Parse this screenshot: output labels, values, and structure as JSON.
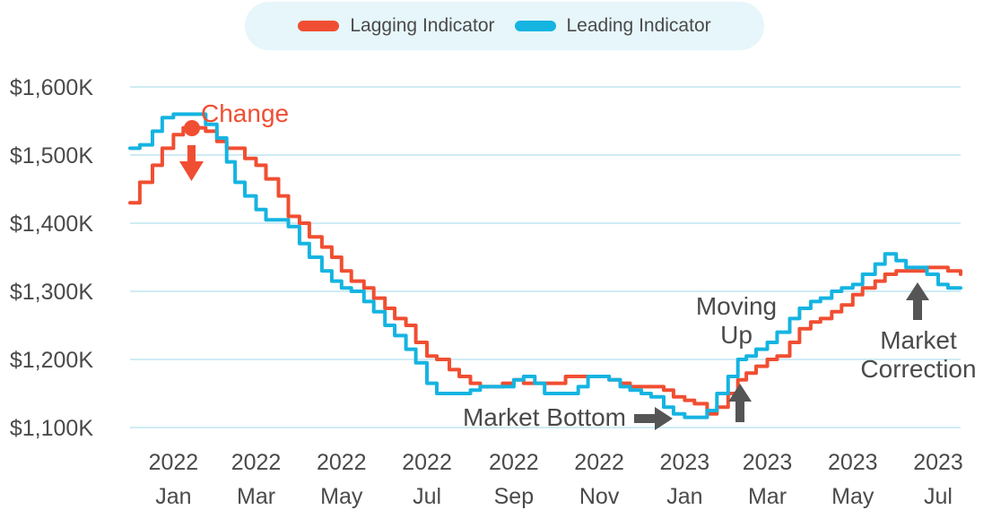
{
  "colors": {
    "lagging": "#F04E32",
    "leading": "#15B4E1",
    "grid": "#BFE6F2",
    "legend_bg": "#E6F6FA",
    "text": "#4A4A4A",
    "arrow_dark": "#555555"
  },
  "legend": {
    "position": "top-center",
    "items": [
      {
        "label": "Lagging Indicator",
        "color": "#F04E32"
      },
      {
        "label": "Leading Indicator",
        "color": "#15B4E1"
      }
    ]
  },
  "annotations": {
    "change": "Change",
    "market_bottom": "Market Bottom",
    "moving_up_1": "Moving",
    "moving_up_2": "Up",
    "market_correction_1": "Market",
    "market_correction_2": "Correction"
  },
  "chart_data": {
    "type": "line",
    "title": "",
    "xlabel": "",
    "ylabel": "",
    "ylim": [
      1100,
      1600
    ],
    "xlim": [
      "2021-12-15",
      "2023-07-31"
    ],
    "grid": true,
    "y_ticks": [
      {
        "value": 1600,
        "label": "$1,600K"
      },
      {
        "value": 1500,
        "label": "$1,500K"
      },
      {
        "value": 1400,
        "label": "$1,400K"
      },
      {
        "value": 1300,
        "label": "$1,300K"
      },
      {
        "value": 1200,
        "label": "$1,200K"
      },
      {
        "value": 1100,
        "label": "$1,100K"
      }
    ],
    "x_ticks": [
      {
        "date": "2022-01-15",
        "year": "2022",
        "month": "Jan"
      },
      {
        "date": "2022-03-15",
        "year": "2022",
        "month": "Mar"
      },
      {
        "date": "2022-05-15",
        "year": "2022",
        "month": "May"
      },
      {
        "date": "2022-07-15",
        "year": "2022",
        "month": "Jul"
      },
      {
        "date": "2022-09-15",
        "year": "2022",
        "month": "Sep"
      },
      {
        "date": "2022-11-15",
        "year": "2022",
        "month": "Nov"
      },
      {
        "date": "2023-01-15",
        "year": "2023",
        "month": "Jan"
      },
      {
        "date": "2023-03-15",
        "year": "2023",
        "month": "Mar"
      },
      {
        "date": "2023-05-15",
        "year": "2023",
        "month": "May"
      },
      {
        "date": "2023-07-15",
        "year": "2023",
        "month": "Jul"
      }
    ],
    "series": [
      {
        "name": "Lagging Indicator",
        "color": "#F04E32",
        "points": [
          [
            "2021-12-15",
            1430
          ],
          [
            "2021-12-22",
            1460
          ],
          [
            "2021-12-31",
            1485
          ],
          [
            "2022-01-07",
            1510
          ],
          [
            "2022-01-15",
            1530
          ],
          [
            "2022-01-22",
            1540
          ],
          [
            "2022-01-31",
            1540
          ],
          [
            "2022-02-07",
            1535
          ],
          [
            "2022-02-15",
            1520
          ],
          [
            "2022-02-22",
            1510
          ],
          [
            "2022-02-28",
            1510
          ],
          [
            "2022-03-07",
            1495
          ],
          [
            "2022-03-15",
            1485
          ],
          [
            "2022-03-22",
            1465
          ],
          [
            "2022-03-31",
            1440
          ],
          [
            "2022-04-07",
            1410
          ],
          [
            "2022-04-15",
            1400
          ],
          [
            "2022-04-22",
            1380
          ],
          [
            "2022-05-01",
            1365
          ],
          [
            "2022-05-08",
            1350
          ],
          [
            "2022-05-15",
            1330
          ],
          [
            "2022-05-22",
            1315
          ],
          [
            "2022-05-31",
            1305
          ],
          [
            "2022-06-07",
            1290
          ],
          [
            "2022-06-15",
            1275
          ],
          [
            "2022-06-22",
            1260
          ],
          [
            "2022-06-30",
            1250
          ],
          [
            "2022-07-07",
            1225
          ],
          [
            "2022-07-15",
            1205
          ],
          [
            "2022-07-22",
            1200
          ],
          [
            "2022-07-31",
            1185
          ],
          [
            "2022-08-07",
            1175
          ],
          [
            "2022-08-15",
            1165
          ],
          [
            "2022-08-22",
            1160
          ],
          [
            "2022-08-31",
            1160
          ],
          [
            "2022-09-07",
            1165
          ],
          [
            "2022-09-15",
            1170
          ],
          [
            "2022-09-22",
            1165
          ],
          [
            "2022-09-30",
            1165
          ],
          [
            "2022-10-07",
            1165
          ],
          [
            "2022-10-15",
            1165
          ],
          [
            "2022-10-22",
            1175
          ],
          [
            "2022-10-31",
            1175
          ],
          [
            "2022-11-07",
            1175
          ],
          [
            "2022-11-15",
            1175
          ],
          [
            "2022-11-22",
            1170
          ],
          [
            "2022-11-30",
            1165
          ],
          [
            "2022-12-07",
            1160
          ],
          [
            "2022-12-15",
            1160
          ],
          [
            "2022-12-22",
            1160
          ],
          [
            "2022-12-31",
            1155
          ],
          [
            "2023-01-07",
            1145
          ],
          [
            "2023-01-15",
            1140
          ],
          [
            "2023-01-22",
            1135
          ],
          [
            "2023-01-31",
            1120
          ],
          [
            "2023-02-07",
            1130
          ],
          [
            "2023-02-15",
            1150
          ],
          [
            "2023-02-22",
            1170
          ],
          [
            "2023-02-28",
            1180
          ],
          [
            "2023-03-07",
            1190
          ],
          [
            "2023-03-15",
            1200
          ],
          [
            "2023-03-22",
            1205
          ],
          [
            "2023-03-31",
            1225
          ],
          [
            "2023-04-07",
            1245
          ],
          [
            "2023-04-15",
            1255
          ],
          [
            "2023-04-22",
            1260
          ],
          [
            "2023-04-30",
            1270
          ],
          [
            "2023-05-07",
            1280
          ],
          [
            "2023-05-15",
            1295
          ],
          [
            "2023-05-22",
            1305
          ],
          [
            "2023-05-31",
            1315
          ],
          [
            "2023-06-07",
            1325
          ],
          [
            "2023-06-15",
            1330
          ],
          [
            "2023-06-22",
            1330
          ],
          [
            "2023-06-30",
            1330
          ],
          [
            "2023-07-07",
            1335
          ],
          [
            "2023-07-15",
            1335
          ],
          [
            "2023-07-22",
            1330
          ],
          [
            "2023-07-31",
            1325
          ]
        ]
      },
      {
        "name": "Leading Indicator",
        "color": "#15B4E1",
        "points": [
          [
            "2021-12-15",
            1510
          ],
          [
            "2021-12-22",
            1515
          ],
          [
            "2021-12-31",
            1535
          ],
          [
            "2022-01-07",
            1555
          ],
          [
            "2022-01-15",
            1560
          ],
          [
            "2022-01-22",
            1560
          ],
          [
            "2022-01-31",
            1560
          ],
          [
            "2022-02-07",
            1545
          ],
          [
            "2022-02-15",
            1525
          ],
          [
            "2022-02-22",
            1490
          ],
          [
            "2022-02-28",
            1460
          ],
          [
            "2022-03-07",
            1440
          ],
          [
            "2022-03-15",
            1420
          ],
          [
            "2022-03-22",
            1405
          ],
          [
            "2022-03-31",
            1405
          ],
          [
            "2022-04-07",
            1395
          ],
          [
            "2022-04-15",
            1370
          ],
          [
            "2022-04-22",
            1350
          ],
          [
            "2022-05-01",
            1330
          ],
          [
            "2022-05-08",
            1315
          ],
          [
            "2022-05-15",
            1305
          ],
          [
            "2022-05-22",
            1300
          ],
          [
            "2022-05-31",
            1285
          ],
          [
            "2022-06-07",
            1270
          ],
          [
            "2022-06-15",
            1250
          ],
          [
            "2022-06-22",
            1235
          ],
          [
            "2022-06-30",
            1215
          ],
          [
            "2022-07-07",
            1195
          ],
          [
            "2022-07-15",
            1165
          ],
          [
            "2022-07-22",
            1150
          ],
          [
            "2022-07-31",
            1150
          ],
          [
            "2022-08-07",
            1150
          ],
          [
            "2022-08-15",
            1155
          ],
          [
            "2022-08-22",
            1160
          ],
          [
            "2022-08-31",
            1160
          ],
          [
            "2022-09-07",
            1160
          ],
          [
            "2022-09-15",
            1170
          ],
          [
            "2022-09-22",
            1175
          ],
          [
            "2022-09-30",
            1165
          ],
          [
            "2022-10-07",
            1150
          ],
          [
            "2022-10-15",
            1150
          ],
          [
            "2022-10-22",
            1150
          ],
          [
            "2022-10-31",
            1160
          ],
          [
            "2022-11-07",
            1175
          ],
          [
            "2022-11-15",
            1175
          ],
          [
            "2022-11-22",
            1170
          ],
          [
            "2022-11-30",
            1160
          ],
          [
            "2022-12-07",
            1155
          ],
          [
            "2022-12-15",
            1150
          ],
          [
            "2022-12-22",
            1145
          ],
          [
            "2022-12-31",
            1130
          ],
          [
            "2023-01-07",
            1120
          ],
          [
            "2023-01-15",
            1115
          ],
          [
            "2023-01-22",
            1115
          ],
          [
            "2023-01-31",
            1125
          ],
          [
            "2023-02-07",
            1150
          ],
          [
            "2023-02-15",
            1175
          ],
          [
            "2023-02-22",
            1200
          ],
          [
            "2023-02-28",
            1205
          ],
          [
            "2023-03-07",
            1215
          ],
          [
            "2023-03-15",
            1225
          ],
          [
            "2023-03-22",
            1240
          ],
          [
            "2023-03-31",
            1260
          ],
          [
            "2023-04-07",
            1275
          ],
          [
            "2023-04-15",
            1285
          ],
          [
            "2023-04-22",
            1290
          ],
          [
            "2023-04-30",
            1300
          ],
          [
            "2023-05-07",
            1305
          ],
          [
            "2023-05-15",
            1310
          ],
          [
            "2023-05-22",
            1325
          ],
          [
            "2023-05-31",
            1340
          ],
          [
            "2023-06-07",
            1355
          ],
          [
            "2023-06-15",
            1345
          ],
          [
            "2023-06-22",
            1335
          ],
          [
            "2023-06-30",
            1335
          ],
          [
            "2023-07-07",
            1325
          ],
          [
            "2023-07-15",
            1310
          ],
          [
            "2023-07-22",
            1305
          ],
          [
            "2023-07-31",
            1305
          ]
        ]
      }
    ]
  }
}
